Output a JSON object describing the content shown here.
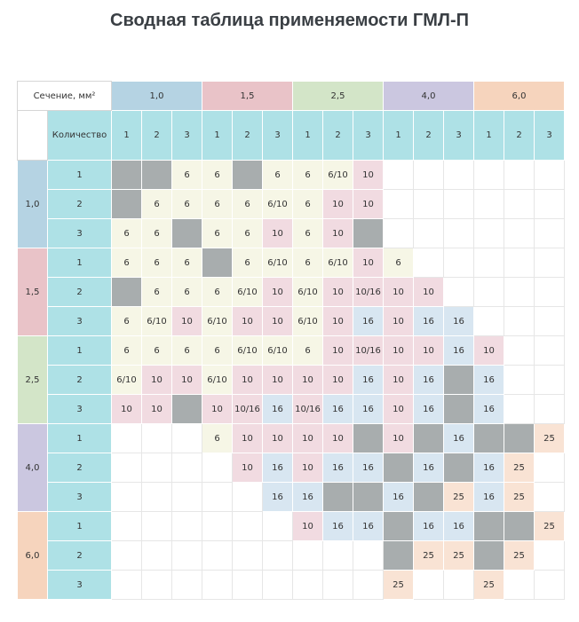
{
  "title": "Сводная таблица применяемости ГМЛ-П",
  "corner_label": "Сечение, мм²",
  "quantity_label": "Количество",
  "sections": [
    {
      "label": "1,0",
      "color": "#b5d3e3"
    },
    {
      "label": "1,5",
      "color": "#e9c3c8"
    },
    {
      "label": "2,5",
      "color": "#d3e5c8"
    },
    {
      "label": "4,0",
      "color": "#cbc7e0"
    },
    {
      "label": "6,0",
      "color": "#f6d4bd"
    }
  ],
  "quantities": [
    "1",
    "2",
    "3"
  ],
  "legend_colors": {
    "gray": "#a8adae",
    "light": "#f6f6e6",
    "pink": "#f1dbe1",
    "blue": "#d8e6f1",
    "peach": "#f9e3d4",
    "quantity_bg": "#aee1e6"
  },
  "rows": [
    {
      "section": "1,0",
      "quantity": "1",
      "cells": [
        {
          "t": "",
          "c": "gray"
        },
        {
          "t": "",
          "c": "gray"
        },
        {
          "t": "6",
          "c": "light"
        },
        {
          "t": "6",
          "c": "light"
        },
        {
          "t": "",
          "c": "gray"
        },
        {
          "t": "6",
          "c": "light"
        },
        {
          "t": "6",
          "c": "light"
        },
        {
          "t": "6/10",
          "c": "light"
        },
        {
          "t": "10",
          "c": "pink"
        },
        {
          "t": "",
          "c": ""
        },
        {
          "t": "",
          "c": ""
        },
        {
          "t": "",
          "c": ""
        },
        {
          "t": "",
          "c": ""
        },
        {
          "t": "",
          "c": ""
        },
        {
          "t": "",
          "c": ""
        }
      ]
    },
    {
      "section": "1,0",
      "quantity": "2",
      "cells": [
        {
          "t": "",
          "c": "gray"
        },
        {
          "t": "6",
          "c": "light"
        },
        {
          "t": "6",
          "c": "light"
        },
        {
          "t": "6",
          "c": "light"
        },
        {
          "t": "6",
          "c": "light"
        },
        {
          "t": "6/10",
          "c": "light"
        },
        {
          "t": "6",
          "c": "light"
        },
        {
          "t": "10",
          "c": "pink"
        },
        {
          "t": "10",
          "c": "pink"
        },
        {
          "t": "",
          "c": ""
        },
        {
          "t": "",
          "c": ""
        },
        {
          "t": "",
          "c": ""
        },
        {
          "t": "",
          "c": ""
        },
        {
          "t": "",
          "c": ""
        },
        {
          "t": "",
          "c": ""
        }
      ]
    },
    {
      "section": "1,0",
      "quantity": "3",
      "cells": [
        {
          "t": "6",
          "c": "light"
        },
        {
          "t": "6",
          "c": "light"
        },
        {
          "t": "",
          "c": "gray"
        },
        {
          "t": "6",
          "c": "light"
        },
        {
          "t": "6",
          "c": "light"
        },
        {
          "t": "10",
          "c": "pink"
        },
        {
          "t": "6",
          "c": "light"
        },
        {
          "t": "10",
          "c": "pink"
        },
        {
          "t": "",
          "c": "gray"
        },
        {
          "t": "",
          "c": ""
        },
        {
          "t": "",
          "c": ""
        },
        {
          "t": "",
          "c": ""
        },
        {
          "t": "",
          "c": ""
        },
        {
          "t": "",
          "c": ""
        },
        {
          "t": "",
          "c": ""
        }
      ]
    },
    {
      "section": "1,5",
      "quantity": "1",
      "cells": [
        {
          "t": "6",
          "c": "light"
        },
        {
          "t": "6",
          "c": "light"
        },
        {
          "t": "6",
          "c": "light"
        },
        {
          "t": "",
          "c": "gray"
        },
        {
          "t": "6",
          "c": "light"
        },
        {
          "t": "6/10",
          "c": "light"
        },
        {
          "t": "6",
          "c": "light"
        },
        {
          "t": "6/10",
          "c": "light"
        },
        {
          "t": "10",
          "c": "pink"
        },
        {
          "t": "6",
          "c": "light"
        },
        {
          "t": "",
          "c": ""
        },
        {
          "t": "",
          "c": ""
        },
        {
          "t": "",
          "c": ""
        },
        {
          "t": "",
          "c": ""
        },
        {
          "t": "",
          "c": ""
        }
      ]
    },
    {
      "section": "1,5",
      "quantity": "2",
      "cells": [
        {
          "t": "",
          "c": "gray"
        },
        {
          "t": "6",
          "c": "light"
        },
        {
          "t": "6",
          "c": "light"
        },
        {
          "t": "6",
          "c": "light"
        },
        {
          "t": "6/10",
          "c": "light"
        },
        {
          "t": "10",
          "c": "pink"
        },
        {
          "t": "6/10",
          "c": "light"
        },
        {
          "t": "10",
          "c": "pink"
        },
        {
          "t": "10/16",
          "c": "pink"
        },
        {
          "t": "10",
          "c": "pink"
        },
        {
          "t": "10",
          "c": "pink"
        },
        {
          "t": "",
          "c": ""
        },
        {
          "t": "",
          "c": ""
        },
        {
          "t": "",
          "c": ""
        },
        {
          "t": "",
          "c": ""
        }
      ]
    },
    {
      "section": "1,5",
      "quantity": "3",
      "cells": [
        {
          "t": "6",
          "c": "light"
        },
        {
          "t": "6/10",
          "c": "light"
        },
        {
          "t": "10",
          "c": "pink"
        },
        {
          "t": "6/10",
          "c": "light"
        },
        {
          "t": "10",
          "c": "pink"
        },
        {
          "t": "10",
          "c": "pink"
        },
        {
          "t": "6/10",
          "c": "light"
        },
        {
          "t": "10",
          "c": "pink"
        },
        {
          "t": "16",
          "c": "blue"
        },
        {
          "t": "10",
          "c": "pink"
        },
        {
          "t": "16",
          "c": "blue"
        },
        {
          "t": "16",
          "c": "blue"
        },
        {
          "t": "",
          "c": ""
        },
        {
          "t": "",
          "c": ""
        },
        {
          "t": "",
          "c": ""
        }
      ]
    },
    {
      "section": "2,5",
      "quantity": "1",
      "cells": [
        {
          "t": "6",
          "c": "light"
        },
        {
          "t": "6",
          "c": "light"
        },
        {
          "t": "6",
          "c": "light"
        },
        {
          "t": "6",
          "c": "light"
        },
        {
          "t": "6/10",
          "c": "light"
        },
        {
          "t": "6/10",
          "c": "light"
        },
        {
          "t": "6",
          "c": "light"
        },
        {
          "t": "10",
          "c": "pink"
        },
        {
          "t": "10/16",
          "c": "pink"
        },
        {
          "t": "10",
          "c": "pink"
        },
        {
          "t": "10",
          "c": "pink"
        },
        {
          "t": "16",
          "c": "blue"
        },
        {
          "t": "10",
          "c": "pink"
        },
        {
          "t": "",
          "c": ""
        },
        {
          "t": "",
          "c": ""
        }
      ]
    },
    {
      "section": "2,5",
      "quantity": "2",
      "cells": [
        {
          "t": "6/10",
          "c": "light"
        },
        {
          "t": "10",
          "c": "pink"
        },
        {
          "t": "10",
          "c": "pink"
        },
        {
          "t": "6/10",
          "c": "light"
        },
        {
          "t": "10",
          "c": "pink"
        },
        {
          "t": "10",
          "c": "pink"
        },
        {
          "t": "10",
          "c": "pink"
        },
        {
          "t": "10",
          "c": "pink"
        },
        {
          "t": "16",
          "c": "blue"
        },
        {
          "t": "10",
          "c": "pink"
        },
        {
          "t": "16",
          "c": "blue"
        },
        {
          "t": "",
          "c": "gray"
        },
        {
          "t": "16",
          "c": "blue"
        },
        {
          "t": "",
          "c": ""
        },
        {
          "t": "",
          "c": ""
        }
      ]
    },
    {
      "section": "2,5",
      "quantity": "3",
      "cells": [
        {
          "t": "10",
          "c": "pink"
        },
        {
          "t": "10",
          "c": "pink"
        },
        {
          "t": "",
          "c": "gray"
        },
        {
          "t": "10",
          "c": "pink"
        },
        {
          "t": "10/16",
          "c": "pink"
        },
        {
          "t": "16",
          "c": "blue"
        },
        {
          "t": "10/16",
          "c": "pink"
        },
        {
          "t": "16",
          "c": "blue"
        },
        {
          "t": "16",
          "c": "blue"
        },
        {
          "t": "10",
          "c": "pink"
        },
        {
          "t": "16",
          "c": "blue"
        },
        {
          "t": "",
          "c": "gray"
        },
        {
          "t": "16",
          "c": "blue"
        },
        {
          "t": "",
          "c": ""
        },
        {
          "t": "",
          "c": ""
        }
      ]
    },
    {
      "section": "4,0",
      "quantity": "1",
      "cells": [
        {
          "t": "",
          "c": ""
        },
        {
          "t": "",
          "c": ""
        },
        {
          "t": "",
          "c": ""
        },
        {
          "t": "6",
          "c": "light"
        },
        {
          "t": "10",
          "c": "pink"
        },
        {
          "t": "10",
          "c": "pink"
        },
        {
          "t": "10",
          "c": "pink"
        },
        {
          "t": "10",
          "c": "pink"
        },
        {
          "t": "",
          "c": "gray"
        },
        {
          "t": "10",
          "c": "pink"
        },
        {
          "t": "",
          "c": "gray"
        },
        {
          "t": "16",
          "c": "blue"
        },
        {
          "t": "",
          "c": "gray"
        },
        {
          "t": "",
          "c": "gray"
        },
        {
          "t": "25",
          "c": "peach"
        }
      ]
    },
    {
      "section": "4,0",
      "quantity": "2",
      "cells": [
        {
          "t": "",
          "c": ""
        },
        {
          "t": "",
          "c": ""
        },
        {
          "t": "",
          "c": ""
        },
        {
          "t": "",
          "c": ""
        },
        {
          "t": "10",
          "c": "pink"
        },
        {
          "t": "16",
          "c": "blue"
        },
        {
          "t": "10",
          "c": "pink"
        },
        {
          "t": "16",
          "c": "blue"
        },
        {
          "t": "16",
          "c": "blue"
        },
        {
          "t": "",
          "c": "gray"
        },
        {
          "t": "16",
          "c": "blue"
        },
        {
          "t": "",
          "c": "gray"
        },
        {
          "t": "16",
          "c": "blue"
        },
        {
          "t": "25",
          "c": "peach"
        },
        {
          "t": "",
          "c": ""
        }
      ]
    },
    {
      "section": "4,0",
      "quantity": "3",
      "cells": [
        {
          "t": "",
          "c": ""
        },
        {
          "t": "",
          "c": ""
        },
        {
          "t": "",
          "c": ""
        },
        {
          "t": "",
          "c": ""
        },
        {
          "t": "",
          "c": ""
        },
        {
          "t": "16",
          "c": "blue"
        },
        {
          "t": "16",
          "c": "blue"
        },
        {
          "t": "",
          "c": "gray"
        },
        {
          "t": "",
          "c": "gray"
        },
        {
          "t": "16",
          "c": "blue"
        },
        {
          "t": "",
          "c": "gray"
        },
        {
          "t": "25",
          "c": "peach"
        },
        {
          "t": "16",
          "c": "blue"
        },
        {
          "t": "25",
          "c": "peach"
        },
        {
          "t": "",
          "c": ""
        }
      ]
    },
    {
      "section": "6,0",
      "quantity": "1",
      "cells": [
        {
          "t": "",
          "c": ""
        },
        {
          "t": "",
          "c": ""
        },
        {
          "t": "",
          "c": ""
        },
        {
          "t": "",
          "c": ""
        },
        {
          "t": "",
          "c": ""
        },
        {
          "t": "",
          "c": ""
        },
        {
          "t": "10",
          "c": "pink"
        },
        {
          "t": "16",
          "c": "blue"
        },
        {
          "t": "16",
          "c": "blue"
        },
        {
          "t": "",
          "c": "gray"
        },
        {
          "t": "16",
          "c": "blue"
        },
        {
          "t": "16",
          "c": "blue"
        },
        {
          "t": "",
          "c": "gray"
        },
        {
          "t": "",
          "c": "gray"
        },
        {
          "t": "25",
          "c": "peach"
        }
      ]
    },
    {
      "section": "6,0",
      "quantity": "2",
      "cells": [
        {
          "t": "",
          "c": ""
        },
        {
          "t": "",
          "c": ""
        },
        {
          "t": "",
          "c": ""
        },
        {
          "t": "",
          "c": ""
        },
        {
          "t": "",
          "c": ""
        },
        {
          "t": "",
          "c": ""
        },
        {
          "t": "",
          "c": ""
        },
        {
          "t": "",
          "c": ""
        },
        {
          "t": "",
          "c": ""
        },
        {
          "t": "",
          "c": "gray"
        },
        {
          "t": "25",
          "c": "peach"
        },
        {
          "t": "25",
          "c": "peach"
        },
        {
          "t": "",
          "c": "gray"
        },
        {
          "t": "25",
          "c": "peach"
        },
        {
          "t": "",
          "c": ""
        }
      ]
    },
    {
      "section": "6,0",
      "quantity": "3",
      "cells": [
        {
          "t": "",
          "c": ""
        },
        {
          "t": "",
          "c": ""
        },
        {
          "t": "",
          "c": ""
        },
        {
          "t": "",
          "c": ""
        },
        {
          "t": "",
          "c": ""
        },
        {
          "t": "",
          "c": ""
        },
        {
          "t": "",
          "c": ""
        },
        {
          "t": "",
          "c": ""
        },
        {
          "t": "",
          "c": ""
        },
        {
          "t": "25",
          "c": "peach"
        },
        {
          "t": "",
          "c": ""
        },
        {
          "t": "",
          "c": ""
        },
        {
          "t": "25",
          "c": "peach"
        },
        {
          "t": "",
          "c": ""
        },
        {
          "t": "",
          "c": ""
        }
      ]
    }
  ]
}
